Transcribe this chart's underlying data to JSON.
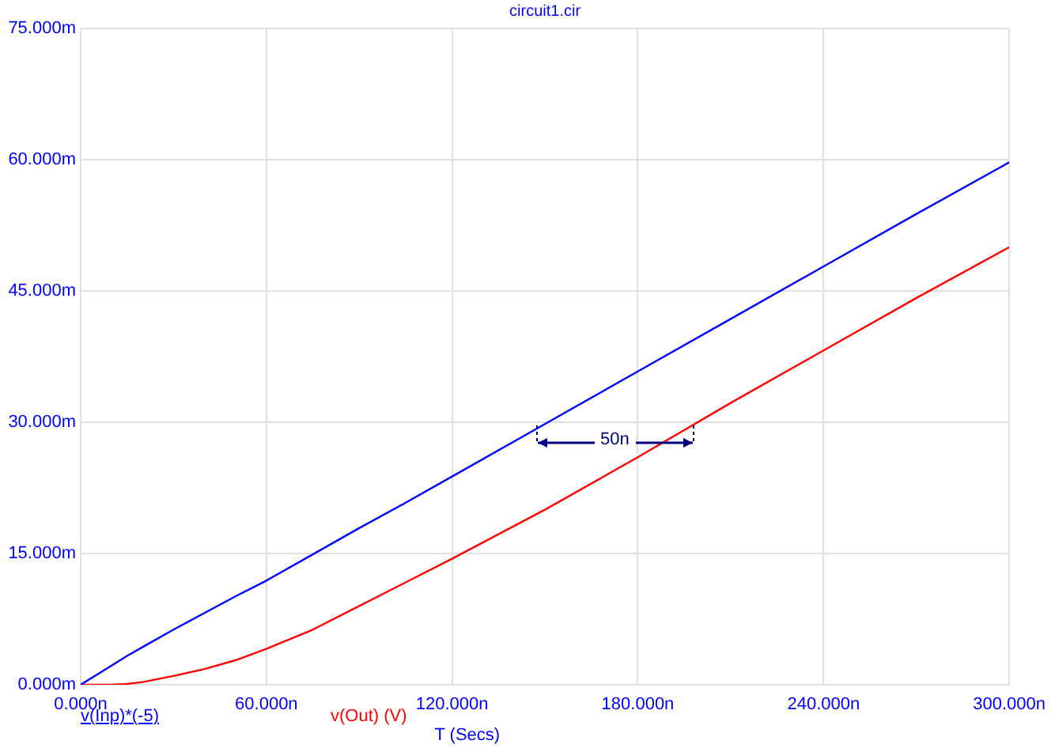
{
  "chart_data": {
    "type": "line",
    "title": "circuit1.cir",
    "xlabel": "T (Secs)",
    "x": [
      0,
      10,
      15,
      20,
      30,
      40,
      50,
      60,
      75,
      90,
      105,
      120,
      150,
      180,
      210,
      240,
      270,
      300
    ],
    "series": [
      {
        "name": "v(Inp)*(-5)",
        "color": "#0000ff",
        "values": [
          0,
          2.2,
          3.3,
          4.3,
          6.3,
          8.2,
          10.1,
          11.9,
          14.9,
          17.9,
          20.8,
          23.8,
          29.8,
          35.8,
          41.8,
          47.8,
          53.8,
          59.7
        ]
      },
      {
        "name": "v(Out) (V)",
        "color": "#ff0000",
        "values": [
          0,
          0,
          0.1,
          0.3,
          1.0,
          1.8,
          2.8,
          4.1,
          6.3,
          9.0,
          11.7,
          14.4,
          20.0,
          26.0,
          32.2,
          38.2,
          44.2,
          50.0
        ]
      }
    ],
    "xlim": [
      0,
      300
    ],
    "xticks": [
      {
        "value": 0,
        "label": "0.000n"
      },
      {
        "value": 60,
        "label": "60.000n"
      },
      {
        "value": 120,
        "label": "120.000n"
      },
      {
        "value": 180,
        "label": "180.000n"
      },
      {
        "value": 240,
        "label": "240.000n"
      },
      {
        "value": 300,
        "label": "300.000n"
      }
    ],
    "ylim": [
      0,
      75
    ],
    "yticks": [
      {
        "value": 0,
        "label": "0.000m"
      },
      {
        "value": 15,
        "label": "15.000m"
      },
      {
        "value": 30,
        "label": "30.000m"
      },
      {
        "value": 45,
        "label": "45.000m"
      },
      {
        "value": 60,
        "label": "60.000m"
      },
      {
        "value": 75,
        "label": "75.000m"
      }
    ],
    "grid": true,
    "legend": "bottom",
    "annotations": [
      "50n"
    ]
  }
}
